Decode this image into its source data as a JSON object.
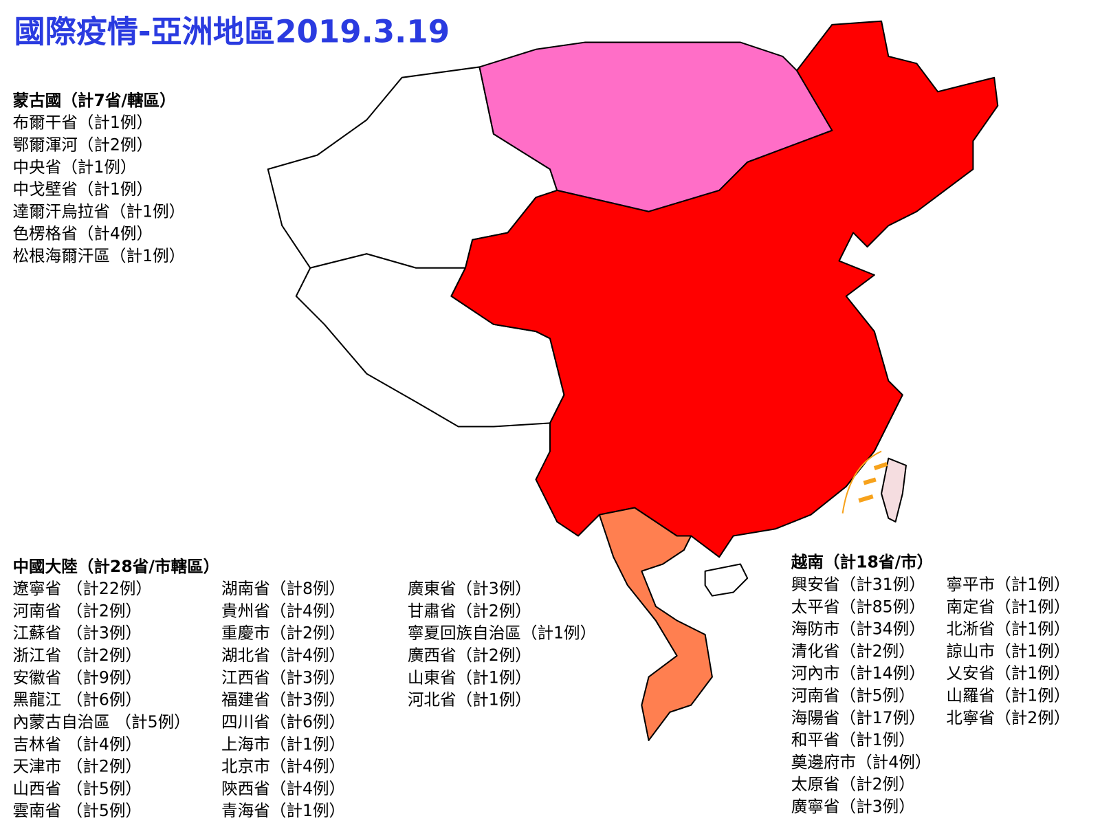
{
  "title": "國際疫情-亞洲地區2019.3.19",
  "mongolia": {
    "heading": "蒙古國（計7省/轄區）",
    "items": [
      "布爾干省（計1例）",
      "鄂爾渾河（計2例）",
      "中央省（計1例）",
      "中戈壁省（計1例）",
      "達爾汗烏拉省（計1例）",
      "色楞格省（計4例）",
      "松根海爾汗區（計1例）"
    ]
  },
  "china": {
    "heading": "中國大陸（計28省/市轄區）",
    "columns": [
      [
        "遼寧省 （計22例）",
        "河南省 （計2例）",
        "江蘇省 （計3例）",
        "浙江省 （計2例）",
        "安徽省 （計9例）",
        "黑龍江 （計6例）",
        "內蒙古自治區 （計5例）",
        "吉林省 （計4例）",
        "天津市 （計2例）",
        "山西省 （計5例）",
        "雲南省 （計5例）"
      ],
      [
        "湖南省（計8例）",
        "貴州省（計4例）",
        "重慶市（計2例）",
        "湖北省（計4例）",
        "江西省（計3例）",
        "福建省（計3例）",
        "四川省（計6例）",
        "上海市（計1例）",
        "北京市（計4例）",
        "陝西省（計4例）",
        "青海省（計1例）"
      ],
      [
        "廣東省（計3例）",
        "甘肅省（計2例）",
        "寧夏回族自治區（計1例）",
        "廣西省（計2例）",
        "山東省（計1例）",
        "河北省（計1例）"
      ]
    ]
  },
  "vietnam": {
    "heading": "越南（計18省/市）",
    "columns": [
      [
        "興安省（計31例）",
        "太平省（計85例）",
        "海防市（計34例）",
        "清化省（計2例）",
        "河內市（計14例）",
        "河南省（計5例）",
        "海陽省（計17例）",
        "和平省（計1例）",
        "奠邊府市（計4例）",
        "太原省（計2例）",
        "廣寧省（計3例）"
      ],
      [
        "寧平市（計1例）",
        "南定省（計1例）",
        "北淅省（計1例）",
        "諒山市（計1例）",
        "乂安省（計1例）",
        "山羅省（計1例）",
        "北寧省（計2例）"
      ]
    ]
  }
}
